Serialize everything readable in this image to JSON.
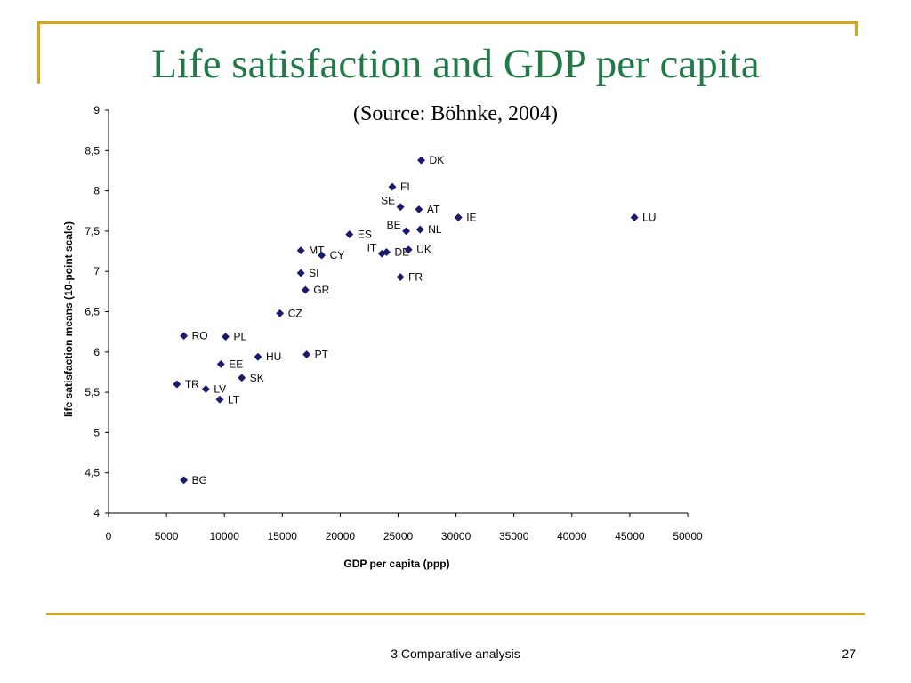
{
  "slide": {
    "title": "Life satisfaction and GDP per capita",
    "subtitle": "(Source: Böhnke, 2004)",
    "footer": "3 Comparative analysis",
    "page_number": "27"
  },
  "colors": {
    "accent_gold": "#d4a520",
    "title_green": "#1f7a45",
    "marker_navy": "#1a1a6e"
  },
  "chart_data": {
    "type": "scatter",
    "title": "",
    "xlabel": "GDP per capita (ppp)",
    "ylabel": "life satisfaction means (10-point scale)",
    "xlim": [
      0,
      50000
    ],
    "ylim": [
      4,
      9
    ],
    "xticks": [
      0,
      5000,
      10000,
      15000,
      20000,
      25000,
      30000,
      35000,
      40000,
      45000,
      50000
    ],
    "xtick_labels": [
      "0",
      "5000",
      "10000",
      "15000",
      "20000",
      "25000",
      "30000",
      "35000",
      "40000",
      "45000",
      "50000"
    ],
    "yticks": [
      4,
      4.5,
      5,
      5.5,
      6,
      6.5,
      7,
      7.5,
      8,
      8.5,
      9
    ],
    "ytick_labels": [
      "4",
      "4,5",
      "5",
      "5,5",
      "6",
      "6,5",
      "7",
      "7,5",
      "8",
      "8,5",
      "9"
    ],
    "grid": false,
    "legend": "none",
    "marker": "diamond",
    "points": [
      {
        "label": "DK",
        "x": 27000,
        "y": 8.38,
        "label_side": "right"
      },
      {
        "label": "FI",
        "x": 24500,
        "y": 8.05,
        "label_side": "right"
      },
      {
        "label": "SE",
        "x": 25200,
        "y": 7.8,
        "label_side": "left"
      },
      {
        "label": "AT",
        "x": 26800,
        "y": 7.77,
        "label_side": "right"
      },
      {
        "label": "IE",
        "x": 30200,
        "y": 7.67,
        "label_side": "right"
      },
      {
        "label": "LU",
        "x": 45400,
        "y": 7.67,
        "label_side": "right"
      },
      {
        "label": "BE",
        "x": 25700,
        "y": 7.5,
        "label_side": "left"
      },
      {
        "label": "NL",
        "x": 26900,
        "y": 7.52,
        "label_side": "right"
      },
      {
        "label": "ES",
        "x": 20800,
        "y": 7.46,
        "label_side": "right"
      },
      {
        "label": "MT",
        "x": 16600,
        "y": 7.26,
        "label_side": "right"
      },
      {
        "label": "CY",
        "x": 18400,
        "y": 7.2,
        "label_side": "right"
      },
      {
        "label": "IT",
        "x": 23600,
        "y": 7.22,
        "label_side": "left"
      },
      {
        "label": "DE",
        "x": 24000,
        "y": 7.24,
        "label_side": "right"
      },
      {
        "label": "UK",
        "x": 25900,
        "y": 7.27,
        "label_side": "right"
      },
      {
        "label": "SI",
        "x": 16600,
        "y": 6.98,
        "label_side": "right"
      },
      {
        "label": "FR",
        "x": 25200,
        "y": 6.93,
        "label_side": "right"
      },
      {
        "label": "GR",
        "x": 17000,
        "y": 6.77,
        "label_side": "right"
      },
      {
        "label": "CZ",
        "x": 14800,
        "y": 6.48,
        "label_side": "right"
      },
      {
        "label": "RO",
        "x": 6500,
        "y": 6.2,
        "label_side": "right"
      },
      {
        "label": "PL",
        "x": 10100,
        "y": 6.19,
        "label_side": "right"
      },
      {
        "label": "HU",
        "x": 12900,
        "y": 5.94,
        "label_side": "right"
      },
      {
        "label": "PT",
        "x": 17100,
        "y": 5.97,
        "label_side": "right"
      },
      {
        "label": "EE",
        "x": 9700,
        "y": 5.85,
        "label_side": "right"
      },
      {
        "label": "SK",
        "x": 11500,
        "y": 5.68,
        "label_side": "right"
      },
      {
        "label": "TR",
        "x": 5900,
        "y": 5.6,
        "label_side": "right"
      },
      {
        "label": "LV",
        "x": 8400,
        "y": 5.54,
        "label_side": "right"
      },
      {
        "label": "LT",
        "x": 9600,
        "y": 5.41,
        "label_side": "right"
      },
      {
        "label": "BG",
        "x": 6500,
        "y": 4.41,
        "label_side": "right"
      }
    ]
  }
}
